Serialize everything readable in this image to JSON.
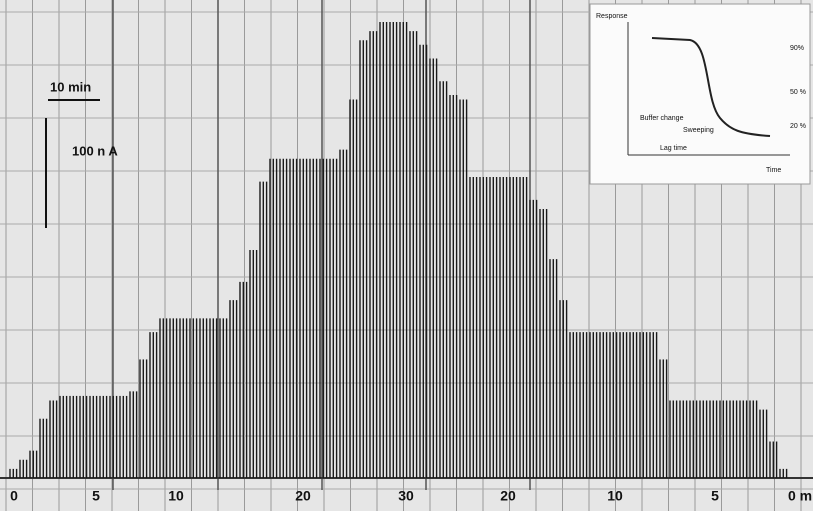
{
  "chart_data": {
    "type": "spikes",
    "scale": {
      "time": "10 min",
      "current": "100 n A"
    },
    "x_labels": [
      "0",
      "5",
      "10",
      "20",
      "30",
      "20",
      "10",
      "5",
      "0 m"
    ],
    "levels": [
      2,
      4,
      6,
      13,
      17,
      18,
      18,
      18,
      18,
      18,
      18,
      18,
      19,
      26,
      32,
      35,
      35,
      35,
      35,
      35,
      35,
      35,
      39,
      43,
      50,
      65,
      70,
      70,
      70,
      70,
      70,
      70,
      70,
      72,
      83,
      96,
      98,
      100,
      100,
      100,
      98,
      95,
      92,
      87,
      84,
      83,
      66,
      66,
      66,
      66,
      66,
      66,
      61,
      59,
      48,
      39,
      32,
      32,
      32,
      32,
      32,
      32,
      32,
      32,
      32,
      26,
      17,
      17,
      17,
      17,
      17,
      17,
      17,
      17,
      17,
      15,
      8,
      2
    ],
    "ylim": [
      0,
      100
    ],
    "color": "#1a1a1a",
    "inset": {
      "y_label": "Response",
      "x_label": "Time",
      "levels": [
        "90%",
        "50 %",
        "20 %"
      ],
      "notes": [
        "Buffer change",
        "Sweeping",
        "Lag time"
      ]
    }
  }
}
